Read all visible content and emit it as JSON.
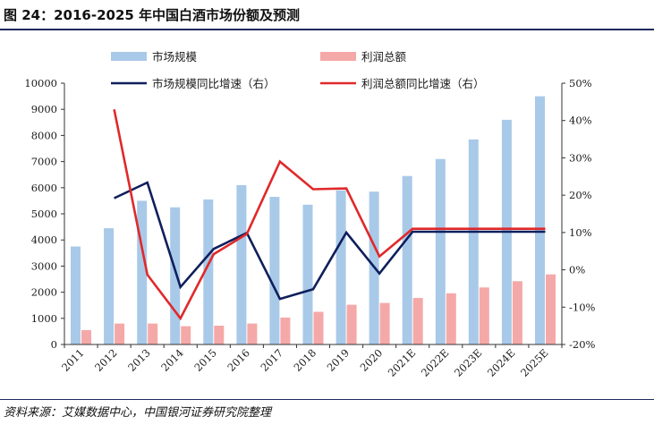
{
  "title": "图 24：2016-2025 年中国白酒市场份额及预测",
  "source": "资料来源：艾媒数据中心，中国银河证券研究院整理",
  "chart_data": {
    "type": "bar",
    "categories": [
      "2011",
      "2012",
      "2013",
      "2014",
      "2015",
      "2016",
      "2017",
      "2018",
      "2019",
      "2020",
      "2021E",
      "2022E",
      "2023E",
      "2024E",
      "2025E"
    ],
    "left_axis": {
      "ylim": [
        0,
        10000
      ],
      "ticks": [
        0,
        1000,
        2000,
        3000,
        4000,
        5000,
        6000,
        7000,
        8000,
        9000,
        10000
      ]
    },
    "right_axis": {
      "ylim": [
        -20,
        50
      ],
      "ticks": [
        -20,
        -10,
        0,
        10,
        20,
        30,
        40,
        50
      ],
      "tick_labels": [
        "-20%",
        "-10%",
        "0%",
        "10%",
        "20%",
        "30%",
        "40%",
        "50%"
      ]
    },
    "series": [
      {
        "name": "市场规模",
        "kind": "bar",
        "axis": "left",
        "color": "#a9c9e8",
        "values": [
          3750,
          4450,
          5500,
          5250,
          5550,
          6100,
          5650,
          5350,
          5900,
          5850,
          6450,
          7100,
          7850,
          8600,
          9500
        ]
      },
      {
        "name": "利润总额",
        "kind": "bar",
        "axis": "left",
        "color": "#f4a9a8",
        "values": [
          550,
          800,
          800,
          700,
          720,
          800,
          1030,
          1250,
          1520,
          1590,
          1780,
          1960,
          2180,
          2420,
          2680
        ]
      },
      {
        "name": "市场规模同比增速（右）",
        "kind": "line",
        "axis": "right",
        "color": "#0f1f5c",
        "values": [
          null,
          19.2,
          23.4,
          -4.6,
          5.6,
          9.9,
          -7.8,
          -5.2,
          10.0,
          -1.0,
          10.2,
          10.2,
          10.2,
          10.2,
          10.2
        ]
      },
      {
        "name": "利润总额同比增速（右）",
        "kind": "line",
        "axis": "right",
        "color": "#e0292a",
        "values": [
          null,
          43.0,
          -1.3,
          -13.0,
          4.2,
          9.6,
          29.0,
          21.6,
          21.8,
          3.6,
          11.0,
          11.0,
          11.0,
          11.0,
          11.0
        ]
      }
    ],
    "legend_position": "top"
  }
}
